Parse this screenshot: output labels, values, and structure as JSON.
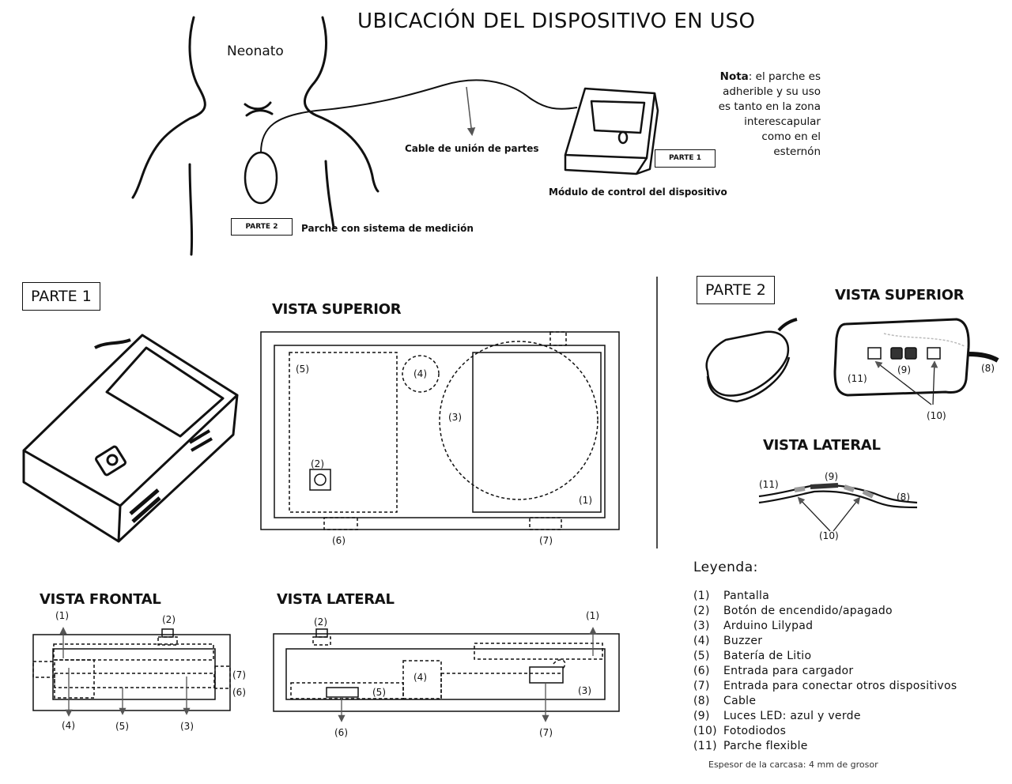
{
  "title": "UBICACIÓN DEL DISPOSITIVO EN USO",
  "top": {
    "neonato": "Neonato",
    "cable": "Cable de unión de partes",
    "modulo": "Módulo de control del dispositivo",
    "parche": "Parche con sistema de medición",
    "parte1_tag": "PARTE 1",
    "parte2_tag": "PARTE 2",
    "note_bold": "Nota",
    "note_lines": [
      ": el parche es",
      "adherible y su uso",
      "es tanto en la zona",
      "interescapular",
      "como en el",
      "esternón"
    ]
  },
  "parte1": {
    "header": "PARTE 1",
    "vista_superior": "VISTA SUPERIOR",
    "vista_frontal": "VISTA FRONTAL",
    "vista_lateral": "VISTA LATERAL",
    "sup_labels": [
      "(5)",
      "(4)",
      "(3)",
      "(2)",
      "(1)",
      "(6)",
      "(7)"
    ],
    "front_labels": [
      "(1)",
      "(2)",
      "(7)",
      "(6)",
      "(4)",
      "(5)",
      "(3)"
    ],
    "lat_labels": [
      "(2)",
      "(1)",
      "(4)",
      "(5)",
      "(3)",
      "(6)",
      "(7)"
    ]
  },
  "parte2": {
    "header": "PARTE 2",
    "vista_superior": "VISTA SUPERIOR",
    "vista_lateral": "VISTA LATERAL",
    "sup_labels": [
      "(11)",
      "(9)",
      "(8)",
      "(10)"
    ],
    "lat_labels": [
      "(11)",
      "(9)",
      "(8)",
      "(10)"
    ]
  },
  "legend": {
    "title": "Leyenda:",
    "items": [
      {
        "n": "(1)",
        "t": "Pantalla"
      },
      {
        "n": "(2)",
        "t": "Botón de encendido/apagado"
      },
      {
        "n": "(3)",
        "t": "Arduino Lilypad"
      },
      {
        "n": "(4)",
        "t": "Buzzer"
      },
      {
        "n": "(5)",
        "t": "Batería de Litio"
      },
      {
        "n": "(6)",
        "t": "Entrada para cargador"
      },
      {
        "n": "(7)",
        "t": "Entrada para conectar otros dispositivos"
      },
      {
        "n": "(8)",
        "t": "Cable"
      },
      {
        "n": "(9)",
        "t": "Luces LED: azul y verde"
      },
      {
        "n": "(10)",
        "t": "Fotodiodos"
      },
      {
        "n": "(11)",
        "t": "Parche flexible"
      }
    ],
    "footnote": "Espesor de la carcasa: 4 mm de grosor"
  }
}
